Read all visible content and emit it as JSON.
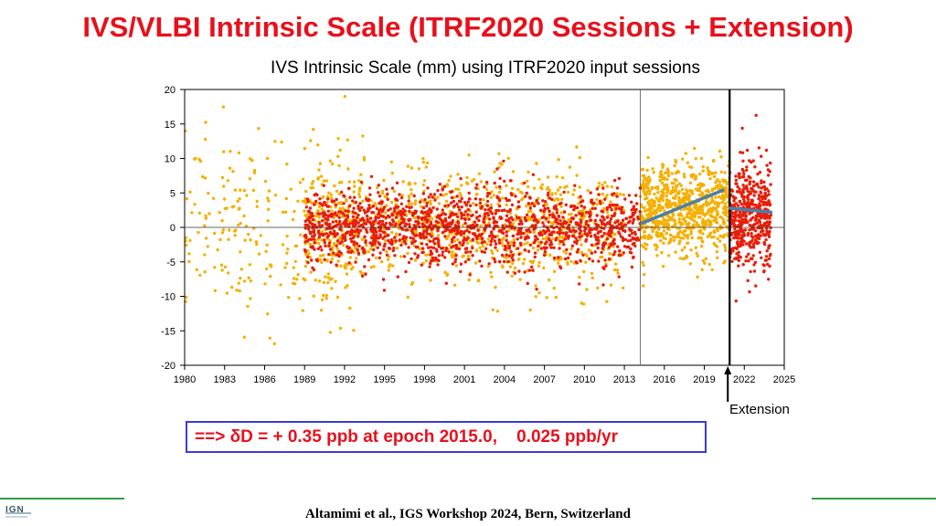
{
  "slide": {
    "title": "IVS/VLBI Intrinsic Scale (ITRF2020 Sessions + Extension)",
    "extension_label": "Extension",
    "formula": "==> δD = + 0.35 ppb at epoch 2015.0,    0.025 ppb/yr",
    "citation": "Altamimi et al., IGS Workshop 2024, Bern, Switzerland",
    "logo_text": "IGN"
  },
  "colors": {
    "title": "#e8101b",
    "series_input_sessions": "#f5b000",
    "series_red": "#e81e0a",
    "trend_line": "#4a7fa8",
    "formula_border": "#3b3bd6",
    "footer_line": "#2f9e44"
  },
  "chart_data": {
    "type": "scatter",
    "title": "IVS Intrinsic Scale (mm) using ITRF2020 input sessions",
    "xlabel": "",
    "ylabel": "",
    "xlim": [
      1980,
      2025
    ],
    "ylim": [
      -20,
      20
    ],
    "x_ticks": [
      1980,
      1983,
      1986,
      1989,
      1992,
      1995,
      1998,
      2001,
      2004,
      2007,
      2010,
      2013,
      2016,
      2019,
      2022,
      2025
    ],
    "y_ticks": [
      20,
      15,
      10,
      5,
      0,
      -5,
      -10,
      -15,
      -20
    ],
    "grid": false,
    "reference_lines": {
      "y_zero": 0,
      "x_vertical_thin": 2014.2,
      "x_vertical_thick": 2020.9
    },
    "series": [
      {
        "color": "#f5b000",
        "description_segments": [
          {
            "x_range": [
              1980,
              1993
            ],
            "mean": 0,
            "spread": 11
          },
          {
            "x_range": [
              1989,
              2013
            ],
            "mean": 0,
            "spread": 7
          },
          {
            "x_range": [
              2014.2,
              2020.9
            ],
            "mean": 2.5,
            "spread": 5.5
          }
        ]
      },
      {
        "color": "#e81e0a",
        "description_segments": [
          {
            "x_range": [
              1989,
              2014.2
            ],
            "mean": 0,
            "spread": 4.5
          },
          {
            "x_range": [
              2020.9,
              2024
            ],
            "mean": 1.5,
            "spread": 6.5
          }
        ]
      }
    ],
    "trend_lines": [
      {
        "x": [
          2014.3,
          2020.4
        ],
        "y": [
          0.6,
          5.4
        ]
      },
      {
        "x": [
          2020.9,
          2024.0
        ],
        "y": [
          2.8,
          2.2
        ]
      }
    ]
  }
}
